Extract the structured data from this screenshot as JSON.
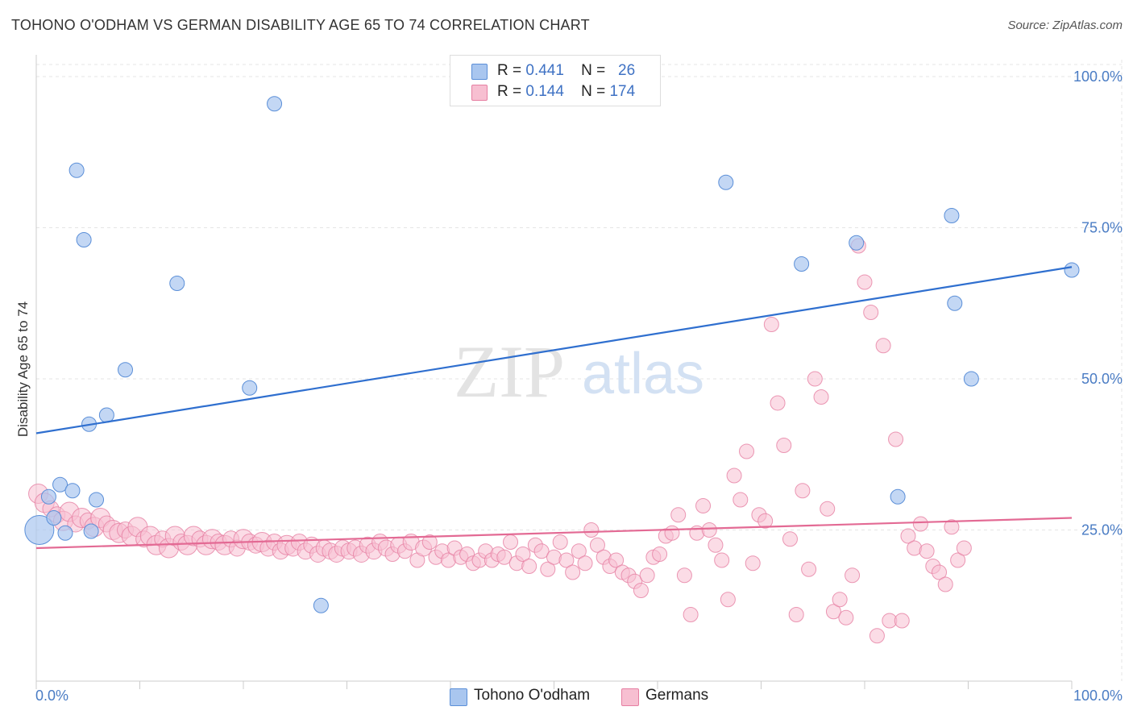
{
  "header": {
    "title": "TOHONO O'ODHAM VS GERMAN DISABILITY AGE 65 TO 74 CORRELATION CHART",
    "source": "Source: ZipAtlas.com"
  },
  "watermark": {
    "zip": "ZIP",
    "atlas": "atlas"
  },
  "legend": {
    "rows": [
      {
        "r_label": "R =",
        "r_value": "0.441",
        "n_label": "N =",
        "n_value": "26",
        "color": "#a9c6ef",
        "border": "#5b8fd8"
      },
      {
        "r_label": "R =",
        "r_value": "0.144",
        "n_label": "N =",
        "n_value": "174",
        "color": "#f7bfd1",
        "border": "#e67fa2"
      }
    ]
  },
  "bottom_legend": {
    "items": [
      {
        "label": "Tohono O'odham",
        "color": "#a9c6ef",
        "border": "#5b8fd8"
      },
      {
        "label": "Germans",
        "color": "#f7bfd1",
        "border": "#e67fa2"
      }
    ]
  },
  "chart_data": {
    "type": "scatter",
    "title": "TOHONO O'ODHAM VS GERMAN DISABILITY AGE 65 TO 74 CORRELATION CHART",
    "xlabel": "",
    "ylabel": "Disability Age 65 to 74",
    "xlim": [
      0,
      100
    ],
    "ylim": [
      0,
      102
    ],
    "x_tick_labels": [
      "0.0%",
      "100.0%"
    ],
    "y_tick_values": [
      25,
      50,
      75,
      100
    ],
    "y_tick_labels": [
      "25.0%",
      "50.0%",
      "75.0%",
      "100.0%"
    ],
    "grid": true,
    "legend_position": "top-center",
    "series": [
      {
        "name": "Tohono O'odham",
        "color": "#a9c6ef",
        "stroke": "#5b8fd8",
        "line_color": "#2f6fcf",
        "trend": {
          "x": [
            0,
            100
          ],
          "y": [
            41,
            68.5
          ]
        },
        "points": [
          [
            0.3,
            25.0,
            18
          ],
          [
            1.2,
            30.5,
            9
          ],
          [
            1.7,
            27.0,
            9
          ],
          [
            2.3,
            32.5,
            9
          ],
          [
            2.8,
            24.5,
            9
          ],
          [
            3.5,
            31.5,
            9
          ],
          [
            3.9,
            84.5,
            9
          ],
          [
            4.6,
            73.0,
            9
          ],
          [
            5.1,
            42.5,
            9
          ],
          [
            5.3,
            24.8,
            9
          ],
          [
            5.8,
            30.0,
            9
          ],
          [
            6.8,
            44.0,
            9
          ],
          [
            8.6,
            51.5,
            9
          ],
          [
            13.6,
            65.8,
            9
          ],
          [
            20.6,
            48.5,
            9
          ],
          [
            23.0,
            95.5,
            9
          ],
          [
            27.5,
            12.5,
            9
          ],
          [
            66.6,
            82.5,
            9
          ],
          [
            73.9,
            69.0,
            9
          ],
          [
            79.2,
            72.5,
            9
          ],
          [
            83.2,
            30.5,
            9
          ],
          [
            88.4,
            77.0,
            9
          ],
          [
            88.7,
            62.5,
            9
          ],
          [
            90.3,
            50.0,
            9
          ],
          [
            100.0,
            68.0,
            9
          ]
        ]
      },
      {
        "name": "Germans",
        "color": "#f7bfd1",
        "stroke": "#e67fa2",
        "line_color": "#e36a94",
        "trend": {
          "x": [
            0,
            100
          ],
          "y": [
            22,
            27
          ]
        },
        "points": [
          [
            0.2,
            31.0,
            12
          ],
          [
            0.8,
            29.5,
            12
          ],
          [
            1.4,
            28.5,
            10
          ],
          [
            2.0,
            27.5,
            10
          ],
          [
            2.6,
            26.5,
            12
          ],
          [
            3.2,
            28.0,
            12
          ],
          [
            3.8,
            26.0,
            10
          ],
          [
            4.4,
            27.0,
            12
          ],
          [
            5.0,
            26.5,
            10
          ],
          [
            5.6,
            25.5,
            12
          ],
          [
            6.2,
            27.0,
            12
          ],
          [
            6.8,
            26.0,
            10
          ],
          [
            7.4,
            25.0,
            12
          ],
          [
            8.0,
            24.5,
            12
          ],
          [
            8.6,
            25.0,
            10
          ],
          [
            9.2,
            24.0,
            12
          ],
          [
            9.8,
            25.5,
            12
          ],
          [
            10.4,
            23.5,
            10
          ],
          [
            11.0,
            24.0,
            12
          ],
          [
            11.6,
            22.5,
            12
          ],
          [
            12.2,
            23.5,
            10
          ],
          [
            12.8,
            22.0,
            12
          ],
          [
            13.4,
            24.0,
            12
          ],
          [
            14.0,
            23.0,
            10
          ],
          [
            14.6,
            22.5,
            12
          ],
          [
            15.2,
            24.0,
            12
          ],
          [
            15.8,
            23.5,
            10
          ],
          [
            16.4,
            22.5,
            12
          ],
          [
            17.0,
            23.5,
            12
          ],
          [
            17.6,
            23.0,
            10
          ],
          [
            18.2,
            22.5,
            12
          ],
          [
            18.8,
            23.5,
            10
          ],
          [
            19.4,
            22.0,
            10
          ],
          [
            20.0,
            23.5,
            12
          ],
          [
            20.6,
            23.0,
            10
          ],
          [
            21.2,
            22.5,
            10
          ],
          [
            21.8,
            23.0,
            12
          ],
          [
            22.4,
            22.0,
            10
          ],
          [
            23.0,
            23.0,
            10
          ],
          [
            23.6,
            21.5,
            10
          ],
          [
            24.2,
            22.5,
            12
          ],
          [
            24.8,
            22.0,
            10
          ],
          [
            25.4,
            23.0,
            10
          ],
          [
            26.0,
            21.5,
            10
          ],
          [
            26.6,
            22.5,
            10
          ],
          [
            27.2,
            21.0,
            10
          ],
          [
            27.8,
            22.0,
            10
          ],
          [
            28.4,
            21.5,
            10
          ],
          [
            29.0,
            21.0,
            10
          ],
          [
            29.6,
            22.0,
            10
          ],
          [
            30.2,
            21.5,
            10
          ],
          [
            30.8,
            22.0,
            10
          ],
          [
            31.4,
            21.0,
            10
          ],
          [
            32.0,
            22.5,
            10
          ],
          [
            32.6,
            21.5,
            10
          ],
          [
            33.2,
            23.0,
            10
          ],
          [
            33.8,
            22.0,
            10
          ],
          [
            34.4,
            21.0,
            9
          ],
          [
            35.0,
            22.5,
            10
          ],
          [
            35.6,
            21.5,
            9
          ],
          [
            36.2,
            23.0,
            10
          ],
          [
            36.8,
            20.0,
            9
          ],
          [
            37.4,
            22.0,
            10
          ],
          [
            38.0,
            23.0,
            9
          ],
          [
            38.6,
            20.5,
            9
          ],
          [
            39.2,
            21.5,
            9
          ],
          [
            39.8,
            20.0,
            9
          ],
          [
            40.4,
            22.0,
            9
          ],
          [
            41.0,
            20.5,
            9
          ],
          [
            41.6,
            21.0,
            9
          ],
          [
            42.2,
            19.5,
            9
          ],
          [
            42.8,
            20.0,
            9
          ],
          [
            43.4,
            21.5,
            9
          ],
          [
            44.0,
            20.0,
            9
          ],
          [
            44.6,
            21.0,
            9
          ],
          [
            45.2,
            20.5,
            9
          ],
          [
            45.8,
            23.0,
            9
          ],
          [
            46.4,
            19.5,
            9
          ],
          [
            47.0,
            21.0,
            9
          ],
          [
            47.6,
            19.0,
            9
          ],
          [
            48.2,
            22.5,
            9
          ],
          [
            48.8,
            21.5,
            9
          ],
          [
            49.4,
            18.5,
            9
          ],
          [
            50.0,
            20.5,
            9
          ],
          [
            50.6,
            23.0,
            9
          ],
          [
            51.2,
            20.0,
            9
          ],
          [
            51.8,
            18.0,
            9
          ],
          [
            52.4,
            21.5,
            9
          ],
          [
            53.0,
            19.5,
            9
          ],
          [
            53.6,
            25.0,
            9
          ],
          [
            54.2,
            22.5,
            9
          ],
          [
            54.8,
            20.5,
            9
          ],
          [
            55.4,
            19.0,
            9
          ],
          [
            56.0,
            20.0,
            9
          ],
          [
            56.6,
            18.0,
            9
          ],
          [
            57.2,
            17.5,
            9
          ],
          [
            57.8,
            16.5,
            9
          ],
          [
            58.4,
            15.0,
            9
          ],
          [
            59.0,
            17.5,
            9
          ],
          [
            59.6,
            20.5,
            9
          ],
          [
            60.2,
            21.0,
            9
          ],
          [
            60.8,
            24.0,
            9
          ],
          [
            61.4,
            24.5,
            9
          ],
          [
            62.0,
            27.5,
            9
          ],
          [
            62.6,
            17.5,
            9
          ],
          [
            63.2,
            11.0,
            9
          ],
          [
            63.8,
            24.5,
            9
          ],
          [
            64.4,
            29.0,
            9
          ],
          [
            65.0,
            25.0,
            9
          ],
          [
            65.6,
            22.5,
            9
          ],
          [
            66.2,
            20.0,
            9
          ],
          [
            66.8,
            13.5,
            9
          ],
          [
            67.4,
            34.0,
            9
          ],
          [
            68.0,
            30.0,
            9
          ],
          [
            68.6,
            38.0,
            9
          ],
          [
            69.2,
            19.5,
            9
          ],
          [
            69.8,
            27.5,
            9
          ],
          [
            70.4,
            26.5,
            9
          ],
          [
            71.0,
            59.0,
            9
          ],
          [
            71.6,
            46.0,
            9
          ],
          [
            72.2,
            39.0,
            9
          ],
          [
            72.8,
            23.5,
            9
          ],
          [
            73.4,
            11.0,
            9
          ],
          [
            74.0,
            31.5,
            9
          ],
          [
            74.6,
            18.5,
            9
          ],
          [
            75.2,
            50.0,
            9
          ],
          [
            75.8,
            47.0,
            9
          ],
          [
            76.4,
            28.5,
            9
          ],
          [
            77.0,
            11.5,
            9
          ],
          [
            77.6,
            13.5,
            9
          ],
          [
            78.2,
            10.5,
            9
          ],
          [
            78.8,
            17.5,
            9
          ],
          [
            79.4,
            72.0,
            9
          ],
          [
            80.0,
            66.0,
            9
          ],
          [
            80.6,
            61.0,
            9
          ],
          [
            81.2,
            7.5,
            9
          ],
          [
            81.8,
            55.5,
            9
          ],
          [
            82.4,
            10.0,
            9
          ],
          [
            83.0,
            40.0,
            9
          ],
          [
            83.6,
            10.0,
            9
          ],
          [
            84.2,
            24.0,
            9
          ],
          [
            84.8,
            22.0,
            9
          ],
          [
            85.4,
            26.0,
            9
          ],
          [
            86.0,
            21.5,
            9
          ],
          [
            86.6,
            19.0,
            9
          ],
          [
            87.2,
            18.0,
            9
          ],
          [
            87.8,
            16.0,
            9
          ],
          [
            88.4,
            25.5,
            9
          ],
          [
            89.0,
            20.0,
            9
          ],
          [
            89.6,
            22.0,
            9
          ]
        ]
      }
    ]
  }
}
